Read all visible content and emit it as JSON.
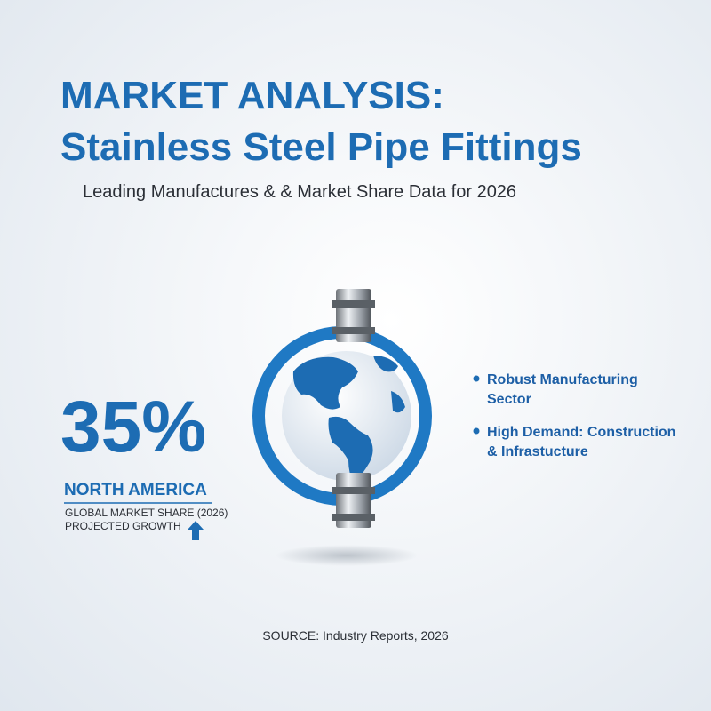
{
  "header": {
    "title_line1": "MARKET ANALYSIS:",
    "title_line2": "Stainless Steel Pipe Fittings",
    "subtitle": "Leading Manufactures & & Market Share Data for 2026"
  },
  "stat": {
    "value": "35%",
    "region": "NORTH AMERICA",
    "caption_line1": "GLOBAL MARKET SHARE (2026)",
    "caption_line2": "PROJECTED GROWTH"
  },
  "bullets": [
    {
      "line1": "Robust Manufacturing",
      "line2": "Sector"
    },
    {
      "line1": "High Demand: Construction",
      "line2": "& Infrastucture"
    }
  ],
  "footer": {
    "source": "SOURCE: Industry Reports, 2026"
  }
}
